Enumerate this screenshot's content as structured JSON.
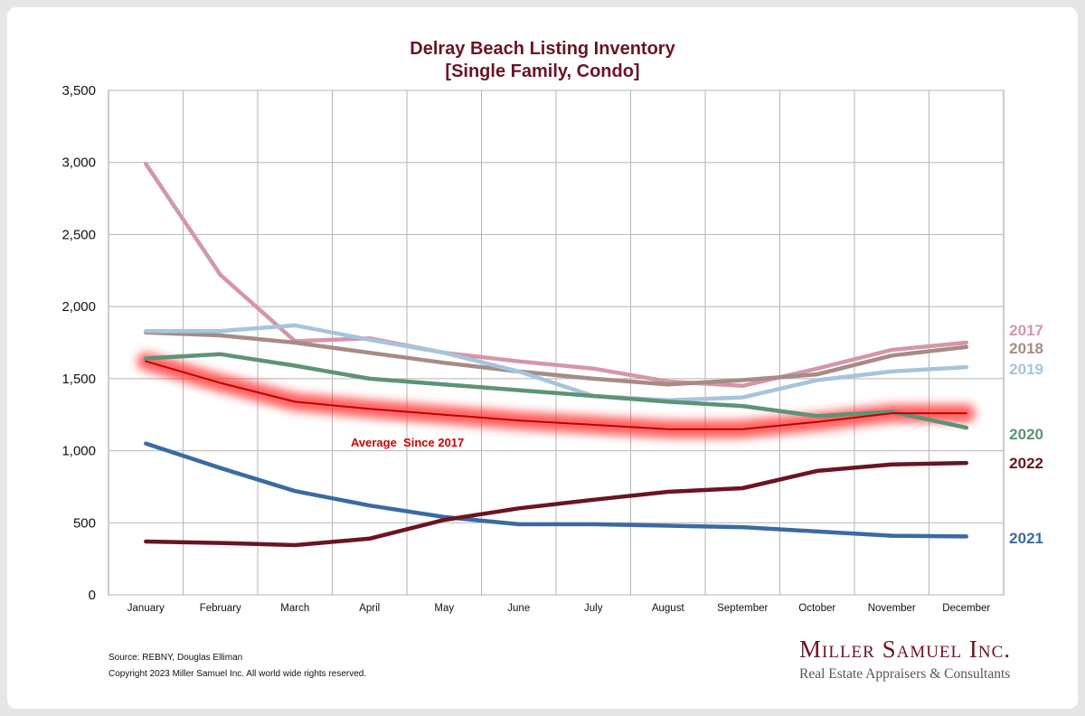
{
  "chart_data": {
    "type": "line",
    "title": "Delray Beach Listing Inventory",
    "subtitle": "[Single Family, Condo]",
    "categories": [
      "January",
      "February",
      "March",
      "April",
      "May",
      "June",
      "July",
      "August",
      "September",
      "October",
      "November",
      "December"
    ],
    "ylim": [
      0,
      3500
    ],
    "yticks": [
      0,
      500,
      1000,
      1500,
      2000,
      2500,
      3000,
      3500
    ],
    "ytick_labels": [
      "0",
      "500",
      "1,000",
      "1,500",
      "2,000",
      "2,500",
      "3,000",
      "3,500"
    ],
    "grid": true,
    "legend": "right, end-of-line labels",
    "series": [
      {
        "name": "2017",
        "color": "#d596a8",
        "values": [
          2990,
          2220,
          1760,
          1780,
          1680,
          1620,
          1570,
          1480,
          1450,
          1570,
          1700,
          1750
        ]
      },
      {
        "name": "2018",
        "color": "#a68b86",
        "values": [
          1820,
          1800,
          1750,
          1680,
          1610,
          1550,
          1500,
          1460,
          1490,
          1530,
          1660,
          1720
        ]
      },
      {
        "name": "2019",
        "color": "#a6c4dd",
        "values": [
          1830,
          1830,
          1870,
          1770,
          1680,
          1550,
          1380,
          1350,
          1370,
          1490,
          1550,
          1580
        ]
      },
      {
        "name": "2020",
        "color": "#5d9376",
        "values": [
          1640,
          1670,
          1590,
          1500,
          1460,
          1420,
          1380,
          1340,
          1310,
          1240,
          1270,
          1160
        ]
      },
      {
        "name": "2021",
        "color": "#3b6aa2",
        "values": [
          1050,
          880,
          720,
          620,
          540,
          490,
          490,
          480,
          470,
          440,
          410,
          405
        ]
      },
      {
        "name": "2022",
        "color": "#6b1423",
        "values": [
          370,
          360,
          345,
          390,
          520,
          600,
          660,
          715,
          740,
          860,
          905,
          915
        ]
      },
      {
        "name": "Average  Since 2017",
        "color": "#c00000",
        "values": [
          1620,
          1470,
          1340,
          1290,
          1250,
          1210,
          1180,
          1150,
          1150,
          1200,
          1260,
          1260
        ]
      }
    ],
    "annotation": "Average  Since 2017"
  },
  "footer": {
    "source": "Source: REBNY, Douglas Elliman",
    "copyright": "Copyright 2023 Miller Samuel Inc.  All world wide rights reserved."
  },
  "brand": {
    "name": "Miller Samuel Inc.",
    "tagline": "Real Estate Appraisers & Consultants"
  }
}
